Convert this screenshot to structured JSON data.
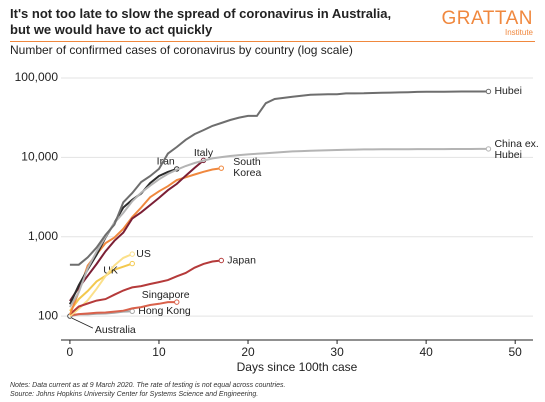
{
  "header": {
    "title": "It's not too late to slow the spread of coronavirus in Australia, but we would have to act quickly",
    "logo": "GRATTAN",
    "logo_sub": "Institute"
  },
  "chart_data": {
    "type": "line",
    "title": "Number of confirmed cases of coronavirus by country (log scale)",
    "x_label": "Days since 100th case",
    "log_y": true,
    "grid": true,
    "xlim": [
      -1,
      52
    ],
    "xticks": [
      0,
      10,
      20,
      30,
      40,
      50
    ],
    "ylim": [
      50,
      130000
    ],
    "yticks": [
      100,
      {
        "value": 1000,
        "label": "1,000"
      },
      {
        "value": 10000,
        "label": "10,000"
      },
      {
        "value": 100000,
        "label": "100,000"
      }
    ],
    "series": [
      {
        "name": "Hubei",
        "color": "#6e6e6e",
        "x": [
          0,
          1,
          2,
          3,
          4,
          5,
          6,
          7,
          8,
          9,
          10,
          11,
          12,
          13,
          14,
          15,
          16,
          17,
          18,
          19,
          20,
          21,
          22,
          23,
          24,
          25,
          26,
          27,
          28,
          29,
          30,
          31,
          32,
          33,
          34,
          35,
          36,
          37,
          38,
          39,
          40,
          41,
          42,
          43,
          44,
          45,
          46,
          47
        ],
        "values": [
          444,
          444,
          549,
          729,
          1052,
          1423,
          2714,
          3554,
          4903,
          5806,
          7153,
          11177,
          13522,
          16678,
          19665,
          22112,
          24953,
          27100,
          29631,
          31728,
          33366,
          33366,
          48206,
          54406,
          56249,
          58182,
          59989,
          61682,
          62031,
          62442,
          62662,
          64084,
          64084,
          64287,
          64786,
          65187,
          65596,
          65914,
          66337,
          66907,
          67103,
          67217,
          67332,
          67466,
          67592,
          67666,
          67707,
          67743
        ]
      },
      {
        "name": "China ex. Hubei",
        "color": "#b4b4b4",
        "x": [
          0,
          1,
          2,
          3,
          4,
          5,
          6,
          7,
          8,
          9,
          10,
          11,
          12,
          13,
          14,
          15,
          16,
          17,
          18,
          19,
          20,
          21,
          22,
          23,
          24,
          25,
          26,
          27,
          28,
          29,
          30,
          31,
          32,
          33,
          34,
          35,
          36,
          37,
          38,
          39,
          40,
          41,
          42,
          43,
          44,
          45,
          46,
          47
        ],
        "values": [
          130,
          200,
          400,
          650,
          1000,
          1500,
          2000,
          2800,
          3600,
          4400,
          5300,
          6200,
          7000,
          7800,
          8500,
          9100,
          9700,
          10100,
          10400,
          10700,
          10900,
          11100,
          11300,
          11500,
          11700,
          11900,
          12000,
          12100,
          12200,
          12300,
          12400,
          12500,
          12550,
          12600,
          12620,
          12640,
          12660,
          12680,
          12700,
          12710,
          12720,
          12730,
          12740,
          12750,
          12760,
          12770,
          12780,
          12800
        ]
      },
      {
        "name": "Iran",
        "color": "#2b2b2b",
        "x": [
          0,
          1,
          2,
          3,
          4,
          5,
          6,
          7,
          8,
          9,
          10,
          11,
          12
        ],
        "values": [
          141,
          245,
          388,
          593,
          978,
          1501,
          2336,
          2922,
          3513,
          4747,
          5823,
          6566,
          7161
        ]
      },
      {
        "name": "Italy",
        "color": "#7b1f35",
        "x": [
          0,
          1,
          2,
          3,
          4,
          5,
          6,
          7,
          8,
          9,
          10,
          11,
          12,
          13,
          14,
          15
        ],
        "values": [
          155,
          229,
          322,
          453,
          655,
          888,
          1128,
          1694,
          2036,
          2502,
          3089,
          3858,
          4636,
          5883,
          7375,
          9172
        ]
      },
      {
        "name": "South Korea",
        "color": "#f0883e",
        "x": [
          0,
          1,
          2,
          3,
          4,
          5,
          6,
          7,
          8,
          9,
          10,
          11,
          12,
          13,
          14,
          15,
          16,
          17
        ],
        "values": [
          104,
          204,
          433,
          602,
          833,
          977,
          1261,
          1766,
          2337,
          3150,
          3736,
          4335,
          5186,
          5621,
          6088,
          6593,
          7041,
          7313
        ]
      },
      {
        "name": "Japan",
        "color": "#b53a3a",
        "x": [
          0,
          1,
          2,
          3,
          4,
          5,
          6,
          7,
          8,
          9,
          10,
          11,
          12,
          13,
          14,
          15,
          16,
          17
        ],
        "values": [
          105,
          132,
          144,
          157,
          164,
          186,
          210,
          230,
          239,
          254,
          268,
          284,
          317,
          349,
          408,
          455,
          488,
          502
        ]
      },
      {
        "name": "US",
        "color": "#fbe08a",
        "x": [
          0,
          1,
          2,
          3,
          4,
          5,
          6,
          7
        ],
        "values": [
          100,
          124,
          158,
          221,
          319,
          435,
          541,
          604
        ]
      },
      {
        "name": "UK",
        "color": "#f3c84d",
        "x": [
          0,
          1,
          2,
          3,
          4,
          5,
          6,
          7
        ],
        "values": [
          116,
          164,
          207,
          274,
          322,
          384,
          420,
          459
        ]
      },
      {
        "name": "Singapore",
        "color": "#d9614b",
        "x": [
          0,
          1,
          2,
          3,
          4,
          5,
          6,
          7,
          8,
          9,
          10,
          11,
          12
        ],
        "values": [
          102,
          106,
          108,
          110,
          111,
          114,
          117,
          125,
          130,
          138,
          143,
          150,
          150
        ]
      },
      {
        "name": "Hong Kong",
        "color": "#a8a8a8",
        "x": [
          0,
          1,
          2,
          3,
          4,
          5,
          6,
          7
        ],
        "values": [
          100,
          105,
          105,
          107,
          108,
          110,
          114,
          115
        ]
      },
      {
        "name": "Australia",
        "color": "#444444",
        "x": [
          0
        ],
        "values": [
          100
        ]
      }
    ]
  },
  "notes": [
    "Notes: Data current as at 9 March 2020. The rate of testing is not equal across countries.",
    "Source: Johns Hopkins University Center for Systems Science and Engineering."
  ]
}
